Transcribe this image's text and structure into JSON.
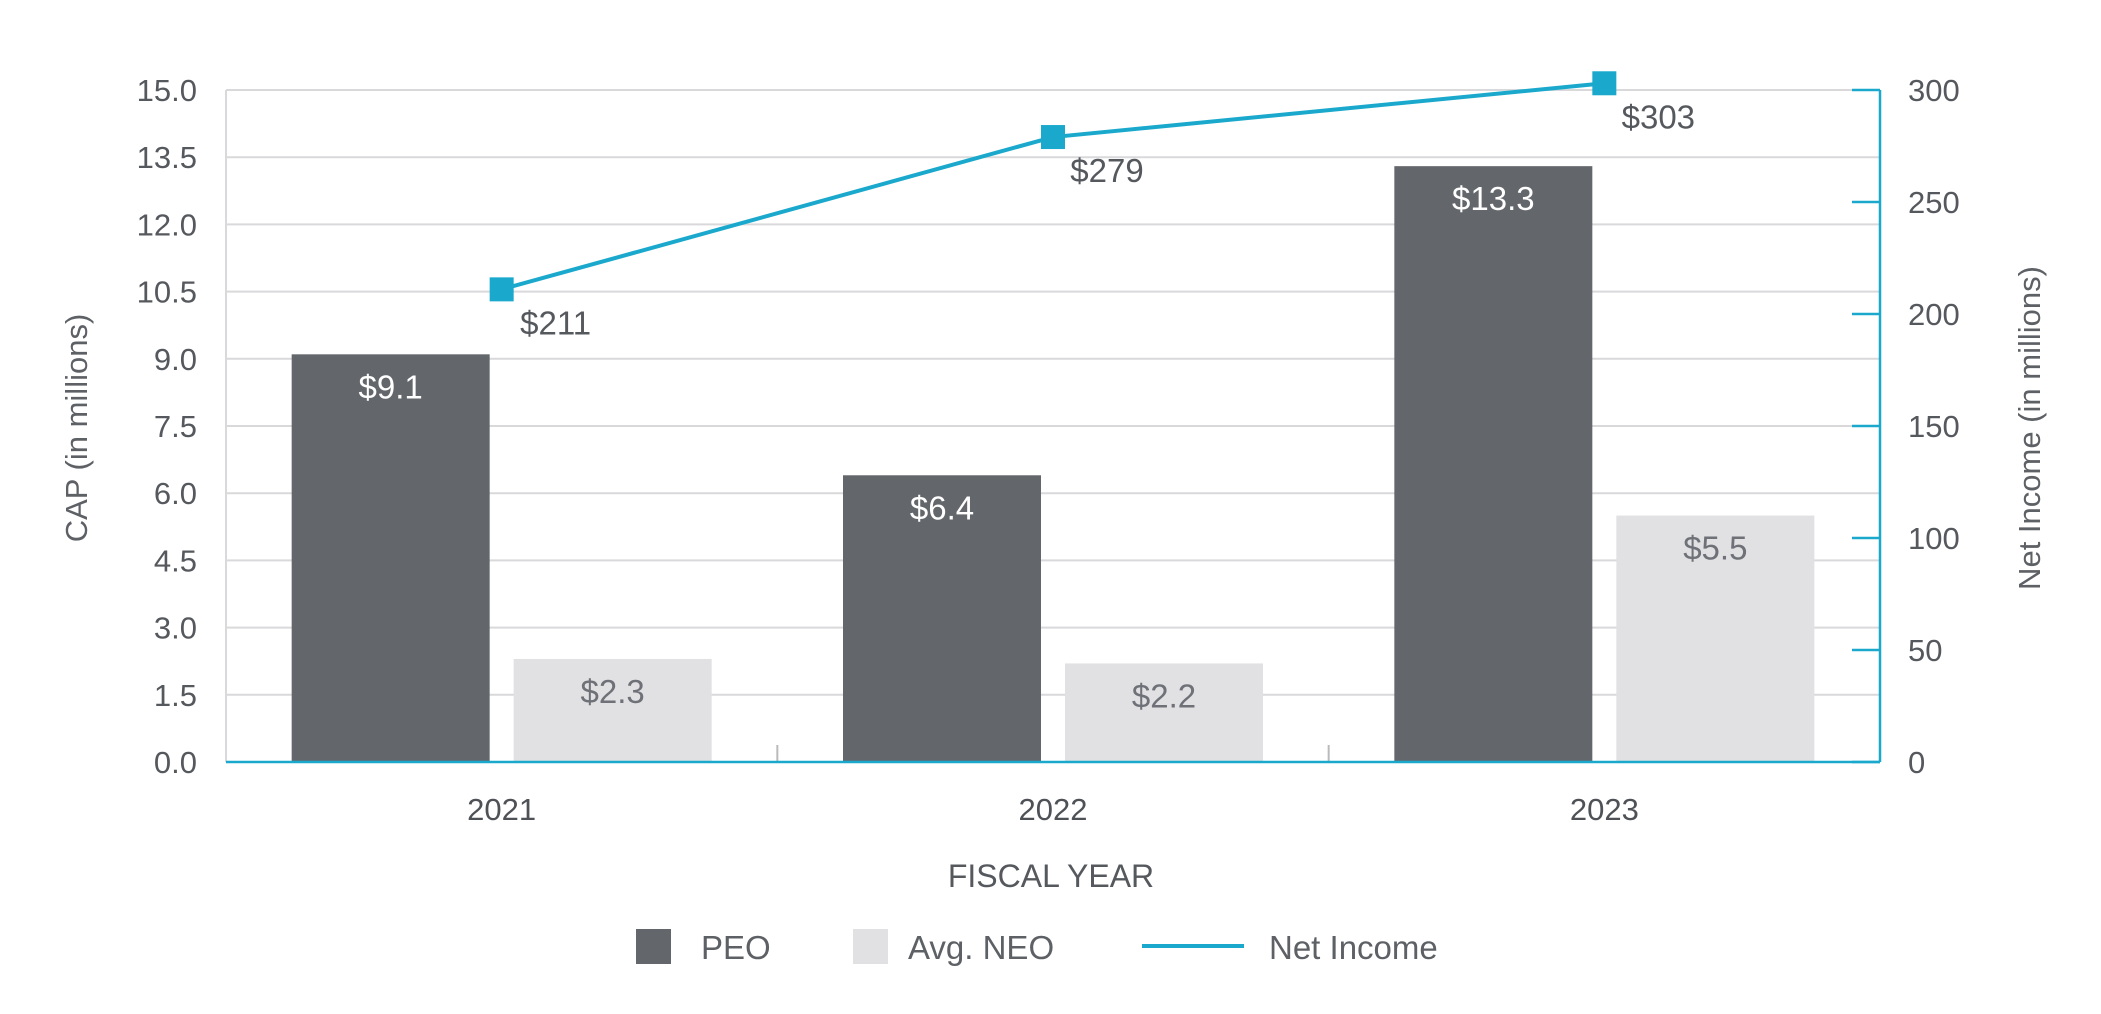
{
  "chart_data": {
    "type": "bar",
    "title": "",
    "xlabel": "FISCAL YEAR",
    "ylabel": "CAP (in millions)",
    "y2label": "Net Income (in millions)",
    "categories": [
      "2021",
      "2022",
      "2023"
    ],
    "ylim": [
      0,
      15
    ],
    "y2lim": [
      0,
      300
    ],
    "yticks": [
      "0.0",
      "1.5",
      "3.0",
      "4.5",
      "6.0",
      "7.5",
      "9.0",
      "10.5",
      "12.0",
      "13.5",
      "15.0"
    ],
    "y2ticks": [
      "0",
      "50",
      "100",
      "150",
      "200",
      "250",
      "300"
    ],
    "series": [
      {
        "name": "PEO",
        "type": "bar",
        "axis": "left",
        "color": "#63666b",
        "values": [
          9.1,
          6.4,
          13.3
        ],
        "labels": [
          "$9.1",
          "$6.4",
          "$13.3"
        ]
      },
      {
        "name": "Avg. NEO",
        "type": "bar",
        "axis": "left",
        "color": "#e1e0e2",
        "values": [
          2.3,
          2.2,
          5.5
        ],
        "labels": [
          "$2.3",
          "$2.2",
          "$5.5"
        ]
      },
      {
        "name": "Net Income",
        "type": "line",
        "axis": "right",
        "color": "#1aa9cc",
        "values": [
          211,
          279,
          303
        ],
        "labels": [
          "$211",
          "$279",
          "$303"
        ]
      }
    ],
    "legend_position": "bottom-center",
    "grid": true
  }
}
